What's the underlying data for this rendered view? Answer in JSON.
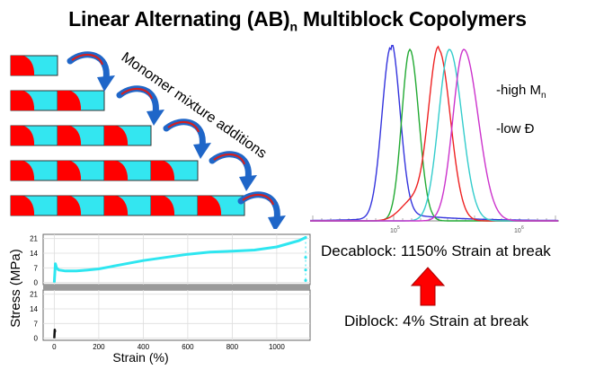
{
  "title": {
    "main": "Linear Alternating (AB)",
    "subscript": "n",
    "rest": " Multiblock Copolymers"
  },
  "scheme": {
    "annotation": "Monomer mixture additions",
    "rows": [
      1,
      2,
      3,
      4,
      5
    ],
    "colors": {
      "block_a": "#ff0000",
      "block_b": "#33e6f0",
      "arrow": "#1f66c8",
      "arrow_accent": "#d42020"
    }
  },
  "gpc": {
    "features": [
      "-high M",
      "-low Đ"
    ],
    "features_sub": [
      "n",
      ""
    ],
    "tick_labels": [
      "10",
      "10"
    ],
    "tick_exponents": [
      "5",
      "6"
    ],
    "curves": [
      {
        "color": "#3333dd"
      },
      {
        "color": "#22aa33"
      },
      {
        "color": "#ee2222"
      },
      {
        "color": "#33cccc"
      },
      {
        "color": "#cc33cc"
      }
    ]
  },
  "callouts": {
    "decablock": "Decablock:  1150% Strain at break",
    "diblock": "Diblock:  4% Strain at break",
    "arrow_color": "#ff0000"
  },
  "chart_data": [
    {
      "type": "line",
      "title": "",
      "xlabel": "Strain (%)",
      "ylabel": "Stress (MPa)",
      "panel": "Decablock",
      "x_ticks": [
        0,
        200,
        400,
        600,
        800,
        1000
      ],
      "y_ticks": [
        0,
        7,
        14,
        21
      ],
      "xlim": [
        -50,
        1150
      ],
      "ylim": [
        -1,
        23
      ],
      "series": [
        {
          "x": [
            0,
            5,
            10,
            20,
            50,
            100,
            150,
            200,
            250,
            300,
            400,
            500,
            600,
            700,
            800,
            900,
            1000,
            1050,
            1100,
            1130
          ],
          "y": [
            0,
            9,
            7,
            6,
            5.5,
            5.5,
            6,
            6.5,
            7.5,
            8.5,
            10.5,
            12,
            13.5,
            14.5,
            15,
            15.5,
            17,
            18.5,
            20,
            21.5
          ]
        }
      ]
    },
    {
      "type": "line",
      "title": "",
      "xlabel": "Strain (%)",
      "ylabel": "Stress (MPa)",
      "panel": "Diblock",
      "x_ticks": [
        0,
        200,
        400,
        600,
        800,
        1000
      ],
      "y_ticks": [
        0,
        7,
        14,
        21
      ],
      "xlim": [
        -50,
        1150
      ],
      "ylim": [
        -1,
        23
      ],
      "series": [
        {
          "x": [
            0,
            2,
            4
          ],
          "y": [
            0,
            4,
            3
          ]
        }
      ]
    }
  ]
}
